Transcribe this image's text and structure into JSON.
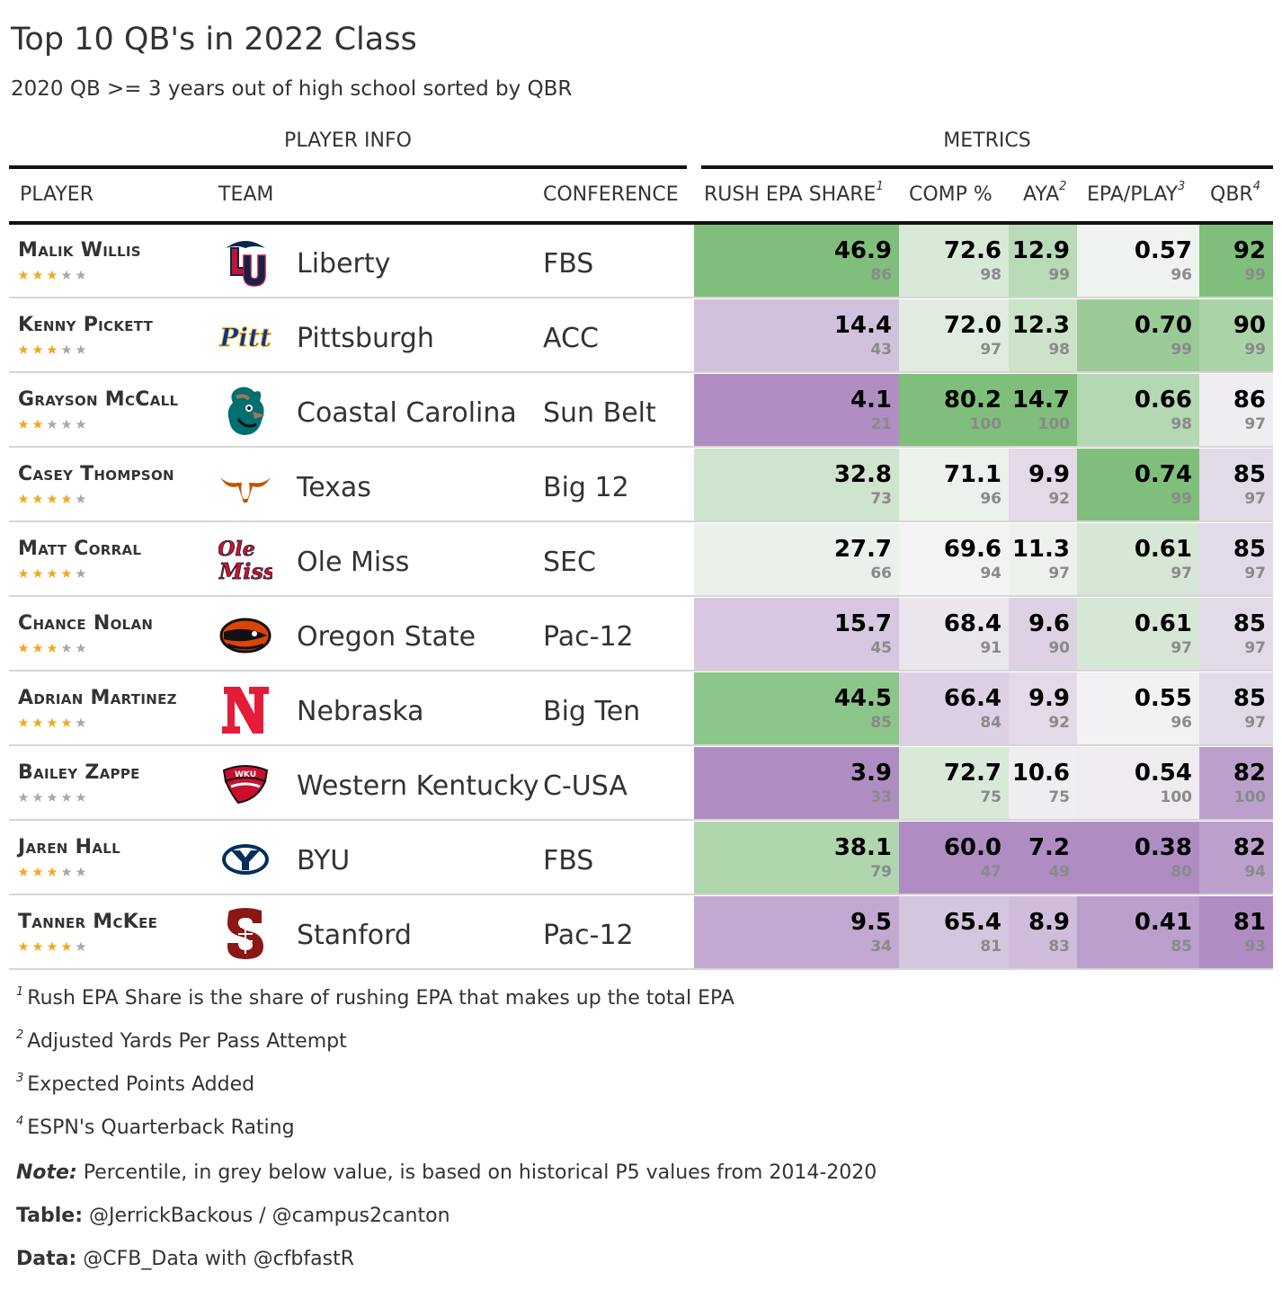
{
  "title": "Top 10 QB's in 2022 Class",
  "subtitle": "2020 QB >= 3 years out of high school sorted by QBR",
  "spanners": {
    "player_info": "PLAYER INFO",
    "metrics": "METRICS"
  },
  "columns": {
    "player": "PLAYER",
    "team": "TEAM",
    "conference": "CONFERENCE",
    "rush_epa_share": "RUSH EPA SHARE",
    "comp": "COMP %",
    "aya": "AYA",
    "epa_play": "EPA/PLAY",
    "qbr": "QBR",
    "marks": {
      "rush_epa_share": "1",
      "aya": "2",
      "epa_play": "3",
      "qbr": "4"
    }
  },
  "colors": {
    "green_max": "#7fbf7b",
    "neutral": "#f7f7f7",
    "purple_max": "#af8dc3",
    "star_filled": "#f5a623",
    "star_empty": "#a8a8a8"
  },
  "chart_data": {
    "type": "table",
    "rows": [
      {
        "player": "Malik Willis",
        "team": "Liberty",
        "conference": "FBS",
        "logo": "liberty-flames",
        "stars": 3,
        "rush_epa_share": 46.9,
        "rush_epa_share_pct": 86,
        "comp": 72.6,
        "comp_pct": 98,
        "aya": 12.9,
        "aya_pct": 99,
        "epa_play": 0.57,
        "epa_play_pct": 96,
        "qbr": 92,
        "qbr_pct": 99
      },
      {
        "player": "Kenny Pickett",
        "team": "Pittsburgh",
        "conference": "ACC",
        "logo": "pitt-script",
        "stars": 3,
        "rush_epa_share": 14.4,
        "rush_epa_share_pct": 43,
        "comp": 72.0,
        "comp_pct": 97,
        "aya": 12.3,
        "aya_pct": 98,
        "epa_play": 0.7,
        "epa_play_pct": 99,
        "qbr": 90,
        "qbr_pct": 99
      },
      {
        "player": "Grayson McCall",
        "team": "Coastal Carolina",
        "conference": "Sun Belt",
        "logo": "chanticleer",
        "stars": 2,
        "rush_epa_share": 4.1,
        "rush_epa_share_pct": 21,
        "comp": 80.2,
        "comp_pct": 100,
        "aya": 14.7,
        "aya_pct": 100,
        "epa_play": 0.66,
        "epa_play_pct": 98,
        "qbr": 86,
        "qbr_pct": 97
      },
      {
        "player": "Casey Thompson",
        "team": "Texas",
        "conference": "Big 12",
        "logo": "longhorn",
        "stars": 4,
        "rush_epa_share": 32.8,
        "rush_epa_share_pct": 73,
        "comp": 71.1,
        "comp_pct": 96,
        "aya": 9.9,
        "aya_pct": 92,
        "epa_play": 0.74,
        "epa_play_pct": 99,
        "qbr": 85,
        "qbr_pct": 97
      },
      {
        "player": "Matt Corral",
        "team": "Ole Miss",
        "conference": "SEC",
        "logo": "ole-miss-script",
        "stars": 4,
        "rush_epa_share": 27.7,
        "rush_epa_share_pct": 66,
        "comp": 69.6,
        "comp_pct": 94,
        "aya": 11.3,
        "aya_pct": 97,
        "epa_play": 0.61,
        "epa_play_pct": 97,
        "qbr": 85,
        "qbr_pct": 97
      },
      {
        "player": "Chance Nolan",
        "team": "Oregon State",
        "conference": "Pac-12",
        "logo": "beaver",
        "stars": 3,
        "rush_epa_share": 15.7,
        "rush_epa_share_pct": 45,
        "comp": 68.4,
        "comp_pct": 91,
        "aya": 9.6,
        "aya_pct": 90,
        "epa_play": 0.61,
        "epa_play_pct": 97,
        "qbr": 85,
        "qbr_pct": 97
      },
      {
        "player": "Adrian Martinez",
        "team": "Nebraska",
        "conference": "Big Ten",
        "logo": "nebraska-n",
        "stars": 4,
        "rush_epa_share": 44.5,
        "rush_epa_share_pct": 85,
        "comp": 66.4,
        "comp_pct": 84,
        "aya": 9.9,
        "aya_pct": 92,
        "epa_play": 0.55,
        "epa_play_pct": 96,
        "qbr": 85,
        "qbr_pct": 97
      },
      {
        "player": "Bailey Zappe",
        "team": "Western Kentucky",
        "conference": "C-USA",
        "logo": "wku-towel",
        "stars": 0,
        "rush_epa_share": 3.9,
        "rush_epa_share_pct": 33,
        "comp": 72.7,
        "comp_pct": 75,
        "aya": 10.6,
        "aya_pct": 75,
        "epa_play": 0.54,
        "epa_play_pct": 100,
        "qbr": 82,
        "qbr_pct": 100
      },
      {
        "player": "Jaren Hall",
        "team": "BYU",
        "conference": "FBS",
        "logo": "byu-oval",
        "stars": 3,
        "rush_epa_share": 38.1,
        "rush_epa_share_pct": 79,
        "comp": 60.0,
        "comp_pct": 47,
        "aya": 7.2,
        "aya_pct": 49,
        "epa_play": 0.38,
        "epa_play_pct": 80,
        "qbr": 82,
        "qbr_pct": 94
      },
      {
        "player": "Tanner McKee",
        "team": "Stanford",
        "conference": "Pac-12",
        "logo": "stanford-s",
        "stars": 4,
        "rush_epa_share": 9.5,
        "rush_epa_share_pct": 34,
        "comp": 65.4,
        "comp_pct": 81,
        "aya": 8.9,
        "aya_pct": 83,
        "epa_play": 0.41,
        "epa_play_pct": 85,
        "qbr": 81,
        "qbr_pct": 93
      }
    ]
  },
  "footnotes": [
    {
      "mark": "1",
      "text": "Rush EPA Share is the share of rushing EPA that makes up the total EPA"
    },
    {
      "mark": "2",
      "text": "Adjusted Yards Per Pass Attempt"
    },
    {
      "mark": "3",
      "text": "Expected Points Added"
    },
    {
      "mark": "4",
      "text": "ESPN's Quarterback Rating"
    }
  ],
  "source_notes": {
    "note_label": "Note:",
    "note_text": "Percentile, in grey below value, is based on historical P5 values from 2014-2020",
    "table_label": "Table:",
    "table_text": "@JerrickBackous / @campus2canton",
    "data_label": "Data:",
    "data_text": "@CFB_Data with @cfbfastR"
  }
}
